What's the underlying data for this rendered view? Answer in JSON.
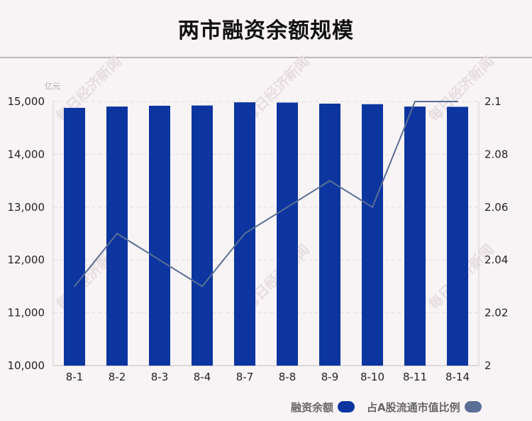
{
  "header": {
    "title": "两市融资余额规模",
    "unit_label": "亿元"
  },
  "watermark_text": "每日经济新闻",
  "colors": {
    "bar": "#0c35a0",
    "line": "#5a6e96",
    "background": "#f8f4f6"
  },
  "legend": {
    "bar_label": "融资余额",
    "line_label": "占A股流通市值比例"
  },
  "chart_data": {
    "type": "bar",
    "categories": [
      "8-1",
      "8-2",
      "8-3",
      "8-4",
      "8-7",
      "8-8",
      "8-9",
      "8-10",
      "8-11",
      "8-14"
    ],
    "series": [
      {
        "name": "融资余额",
        "type": "bar",
        "axis": "left",
        "values": [
          14880,
          14905,
          14920,
          14925,
          14985,
          14980,
          14960,
          14950,
          14905,
          14900
        ]
      },
      {
        "name": "占A股流通市值比例",
        "type": "line",
        "axis": "right",
        "values": [
          2.03,
          2.05,
          2.04,
          2.03,
          2.05,
          2.06,
          2.07,
          2.06,
          2.1,
          2.1
        ]
      }
    ],
    "ylim_left": [
      10000,
      15000
    ],
    "yticks_left": [
      "10,000",
      "11,000",
      "12,000",
      "13,000",
      "14,000",
      "15,000"
    ],
    "ylim_right": [
      2,
      2.1
    ],
    "yticks_right": [
      "2",
      "2.02",
      "2.04",
      "2.06",
      "2.08",
      "2.1"
    ],
    "ylabel": "亿元",
    "grid": true,
    "legend_position": "bottom-right"
  }
}
